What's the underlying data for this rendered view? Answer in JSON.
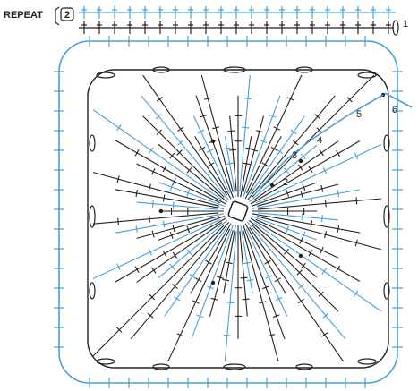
{
  "repeat": {
    "label": "REPEAT",
    "count": "2"
  },
  "round_labels": [
    "1",
    "2",
    "3",
    "4",
    "5",
    "6"
  ],
  "colors": {
    "black_rounds": "#2b2b2b",
    "blue_rounds": "#4a9fd8",
    "background": "#ffffff",
    "text": "#222222"
  },
  "stitch_symbols": [
    "chain-oval",
    "treble-cross",
    "double-treble-cross",
    "slip-stitch-dot"
  ]
}
